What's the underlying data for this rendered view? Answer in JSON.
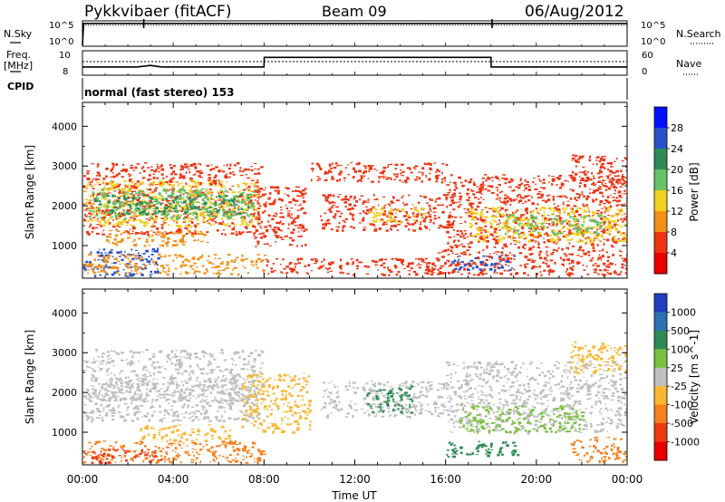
{
  "header": {
    "title": "Pykkvibaer (fitACF)",
    "beam": "Beam 09",
    "date": "06/Aug/2012"
  },
  "side_labels": {
    "nsky": "N.Sky",
    "freq_line1": "Freq.",
    "freq_line2": "[MHz]",
    "cpid": "CPID",
    "nsearch": "N.Search",
    "nave": "Nave"
  },
  "nsky_ticks": [
    "10^5",
    "10^0"
  ],
  "nsearch_ticks": [
    "10^5",
    "10^0"
  ],
  "freq_ticks": [
    "10",
    "8"
  ],
  "nave_ticks": [
    "60",
    "0"
  ],
  "cpid_text": "normal (fast stereo) 153",
  "chart_data": [
    {
      "type": "line",
      "panel": "noise",
      "x_unit": "hours UT",
      "series": [
        {
          "name": "N.Sky",
          "x": [
            0,
            0.05,
            2.7,
            2.75,
            18.05,
            18.1,
            24
          ],
          "values": [
            1,
            100000,
            100000,
            100000,
            100000,
            100000,
            100000
          ]
        },
        {
          "name": "N.Search",
          "x": [
            0,
            24
          ],
          "values": [
            100000,
            100000
          ]
        }
      ]
    },
    {
      "type": "line",
      "panel": "frequency / nave",
      "x_unit": "hours UT",
      "series": [
        {
          "name": "Freq. [MHz]",
          "x": [
            0,
            2.4,
            3.0,
            3.5,
            8.0,
            8.01,
            18.0,
            18.01,
            24
          ],
          "values": [
            8.8,
            8.8,
            9.0,
            8.8,
            8.8,
            10.0,
            10.0,
            8.8,
            8.8
          ]
        },
        {
          "name": "Nave",
          "x": [
            0,
            24
          ],
          "values": [
            32,
            32
          ]
        }
      ]
    },
    {
      "type": "heatmap",
      "panel": "power",
      "xlabel": "",
      "ylabel": "Slant Range [km]",
      "xlim": [
        0,
        24
      ],
      "ylim": [
        180,
        4600
      ],
      "yticks": [
        1000,
        2000,
        3000,
        4000
      ],
      "colorbar": {
        "label": "Power [dB]",
        "ticks": [
          28,
          24,
          20,
          16,
          12,
          8,
          4
        ],
        "colors": [
          "#0010ff",
          "#2a52c8",
          "#2e8b57",
          "#66c266",
          "#f0d020",
          "#f39019",
          "#ec3513",
          "#e60000"
        ]
      },
      "regions": [
        {
          "x0": 0.0,
          "x1": 3.3,
          "y0": 250,
          "y1": 950,
          "level": 26
        },
        {
          "x0": 0.0,
          "x1": 8.0,
          "y0": 300,
          "y1": 800,
          "level": 10
        },
        {
          "x0": 0.0,
          "x1": 7.9,
          "y0": 1300,
          "y1": 3100,
          "level": 6
        },
        {
          "x0": 0.1,
          "x1": 7.7,
          "y0": 1500,
          "y1": 2650,
          "level": 12
        },
        {
          "x0": 0.2,
          "x1": 7.6,
          "y0": 1700,
          "y1": 2450,
          "level": 16
        },
        {
          "x0": 0.5,
          "x1": 7.4,
          "y0": 1800,
          "y1": 2300,
          "level": 22
        },
        {
          "x0": 1.0,
          "x1": 5.5,
          "y0": 1000,
          "y1": 1400,
          "level": 8
        },
        {
          "x0": 7.5,
          "x1": 9.8,
          "y0": 1000,
          "y1": 2500,
          "level": 5
        },
        {
          "x0": 8.0,
          "x1": 16.0,
          "y0": 280,
          "y1": 700,
          "level": 5
        },
        {
          "x0": 10.4,
          "x1": 16.3,
          "y0": 1400,
          "y1": 2300,
          "level": 6
        },
        {
          "x0": 12.5,
          "x1": 15.0,
          "y0": 1600,
          "y1": 2000,
          "level": 13
        },
        {
          "x0": 10.0,
          "x1": 16.0,
          "y0": 2600,
          "y1": 3100,
          "level": 5
        },
        {
          "x0": 15.6,
          "x1": 24.0,
          "y0": 280,
          "y1": 1000,
          "level": 6
        },
        {
          "x0": 16.2,
          "x1": 19.0,
          "y0": 400,
          "y1": 780,
          "level": 26
        },
        {
          "x0": 16.0,
          "x1": 24.0,
          "y0": 1000,
          "y1": 2800,
          "level": 7
        },
        {
          "x0": 17.0,
          "x1": 24.0,
          "y0": 1100,
          "y1": 2000,
          "level": 12
        },
        {
          "x0": 18.6,
          "x1": 23.0,
          "y0": 1300,
          "y1": 1800,
          "level": 17
        },
        {
          "x0": 21.5,
          "x1": 24.0,
          "y0": 2500,
          "y1": 3300,
          "level": 6
        }
      ]
    },
    {
      "type": "heatmap",
      "panel": "velocity",
      "xlabel": "Time UT",
      "ylabel": "Slant Range [km]",
      "xlim": [
        0,
        24
      ],
      "ylim": [
        180,
        4600
      ],
      "xticks": [
        "00:00",
        "04:00",
        "08:00",
        "12:00",
        "16:00",
        "20:00",
        "00:00"
      ],
      "yticks": [
        1000,
        2000,
        3000,
        4000
      ],
      "colorbar": {
        "label": "Velocity [m s^-1]",
        "ticks": [
          1000,
          500,
          100,
          25,
          -25,
          -100,
          -500,
          -1000
        ],
        "colors": [
          "#2040c0",
          "#2e6fb0",
          "#2e8b57",
          "#7ac143",
          "#bfbfbf",
          "#f7b733",
          "#f5801f",
          "#ec3a13",
          "#e60000"
        ]
      },
      "regions": [
        {
          "x0": 0.0,
          "x1": 8.0,
          "y0": 250,
          "y1": 800,
          "level": -300
        },
        {
          "x0": 0.0,
          "x1": 3.5,
          "y0": 250,
          "y1": 600,
          "level": -800
        },
        {
          "x0": 0.0,
          "x1": 7.9,
          "y0": 1300,
          "y1": 3100,
          "level": 0
        },
        {
          "x0": 0.2,
          "x1": 7.7,
          "y0": 1800,
          "y1": 2400,
          "level": 0
        },
        {
          "x0": 2.5,
          "x1": 6.5,
          "y0": 800,
          "y1": 1200,
          "level": -50
        },
        {
          "x0": 7.0,
          "x1": 10.0,
          "y0": 1000,
          "y1": 2500,
          "level": -50
        },
        {
          "x0": 10.5,
          "x1": 16.3,
          "y0": 1400,
          "y1": 2300,
          "level": 0
        },
        {
          "x0": 12.5,
          "x1": 14.5,
          "y0": 1500,
          "y1": 2200,
          "level": 300
        },
        {
          "x0": 16.0,
          "x1": 19.2,
          "y0": 400,
          "y1": 800,
          "level": 200
        },
        {
          "x0": 16.0,
          "x1": 24.0,
          "y0": 1000,
          "y1": 2800,
          "level": 0
        },
        {
          "x0": 16.5,
          "x1": 22.0,
          "y0": 1000,
          "y1": 1700,
          "level": 60
        },
        {
          "x0": 21.5,
          "x1": 24.0,
          "y0": 250,
          "y1": 900,
          "level": -300
        },
        {
          "x0": 21.5,
          "x1": 24.0,
          "y0": 2500,
          "y1": 3300,
          "level": -30
        }
      ]
    }
  ]
}
